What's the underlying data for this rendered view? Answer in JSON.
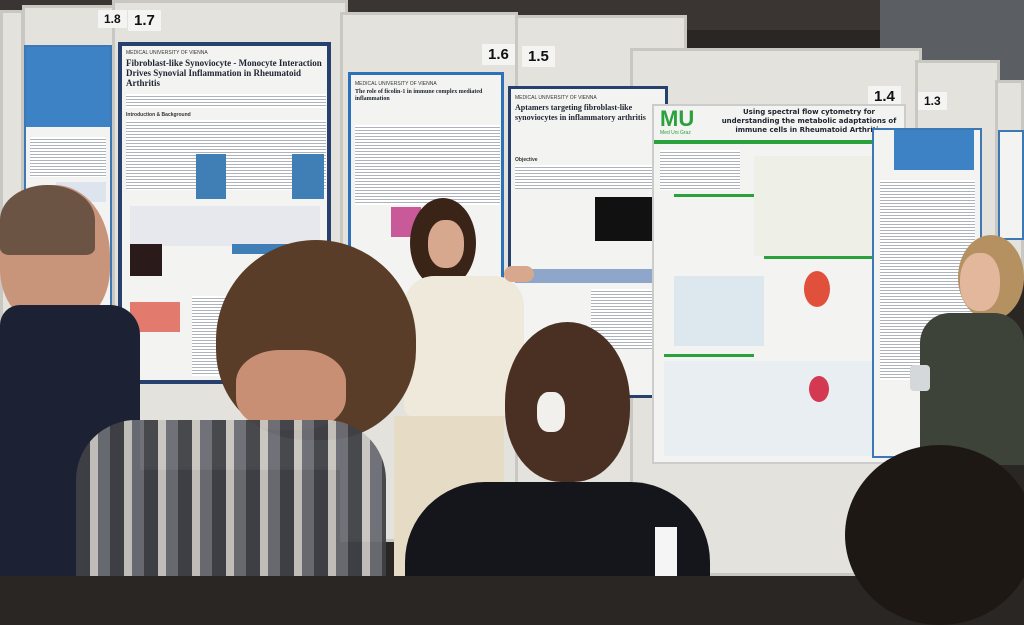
{
  "scene": {
    "description_colors": {
      "wall": "#2a2624",
      "panel": "#e4e2dc",
      "poster_border": "#27406e",
      "accent_green": "#2aa13c"
    },
    "boards": [
      {
        "number": "1.8"
      },
      {
        "number": "1.7"
      },
      {
        "number": "1.6"
      },
      {
        "number": "1.5"
      },
      {
        "number": "1.4"
      },
      {
        "number": "1.3"
      }
    ],
    "posters": [
      {
        "institution": "MEDICAL UNIVERSITY OF VIENNA",
        "title": "Fibroblast-like Synoviocyte - Monocyte Interaction Drives Synovial Inflammation in Rheumatoid Arthritis",
        "section": "Introduction & Background"
      },
      {
        "institution": "MEDICAL UNIVERSITY OF VIENNA",
        "title": "The role of ficolin-1 in immune complex mediated inflammation"
      },
      {
        "institution": "MEDICAL UNIVERSITY OF VIENNA",
        "title": "Aptamers targeting fibroblast-like synoviocytes in inflammatory arthritis",
        "section": "Objective"
      },
      {
        "institution": "Med Uni Graz",
        "logo": "MU",
        "title": "Using spectral flow cytometry for understanding the metabolic adaptations of immune cells in Rheumatoid Arthritis"
      }
    ]
  }
}
